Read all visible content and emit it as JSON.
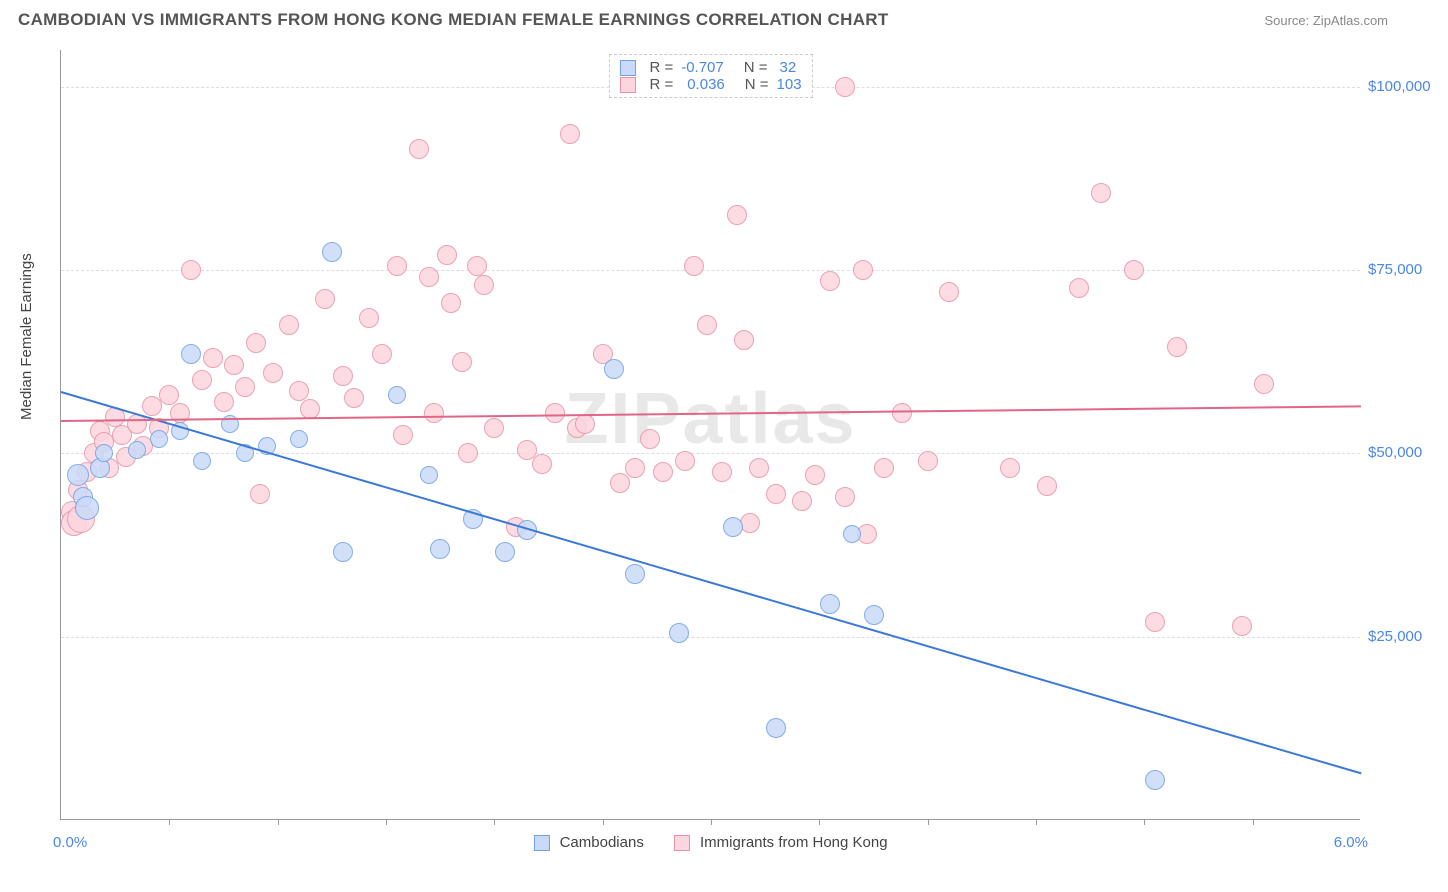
{
  "title": "CAMBODIAN VS IMMIGRANTS FROM HONG KONG MEDIAN FEMALE EARNINGS CORRELATION CHART",
  "source": "Source: ZipAtlas.com",
  "watermark": "ZIPatlas",
  "ylabel": "Median Female Earnings",
  "xaxis": {
    "min_label": "0.0%",
    "max_label": "6.0%",
    "min": 0.0,
    "max": 6.0,
    "tick_step": 0.5
  },
  "yaxis": {
    "min": 0,
    "max": 105000,
    "ticks": [
      25000,
      50000,
      75000,
      100000
    ],
    "tick_labels": [
      "$25,000",
      "$50,000",
      "$75,000",
      "$100,000"
    ]
  },
  "series": [
    {
      "name": "Cambodians",
      "color_fill": "#c9daf8",
      "color_stroke": "#6fa0e8",
      "r_value": "-0.707",
      "n_value": "32",
      "trend": {
        "x1": 0.0,
        "y1": 58500,
        "x2": 6.0,
        "y2": 6500,
        "color": "#3b78d8",
        "width": 2
      },
      "points": [
        {
          "x": 0.08,
          "y": 47000,
          "r": 11
        },
        {
          "x": 0.1,
          "y": 44000,
          "r": 10
        },
        {
          "x": 0.12,
          "y": 42500,
          "r": 12
        },
        {
          "x": 0.18,
          "y": 48000,
          "r": 10
        },
        {
          "x": 0.2,
          "y": 50000,
          "r": 9
        },
        {
          "x": 0.35,
          "y": 50500,
          "r": 9
        },
        {
          "x": 0.45,
          "y": 52000,
          "r": 9
        },
        {
          "x": 0.55,
          "y": 53000,
          "r": 9
        },
        {
          "x": 0.6,
          "y": 63500,
          "r": 10
        },
        {
          "x": 0.65,
          "y": 49000,
          "r": 9
        },
        {
          "x": 0.78,
          "y": 54000,
          "r": 9
        },
        {
          "x": 0.85,
          "y": 50000,
          "r": 9
        },
        {
          "x": 0.95,
          "y": 51000,
          "r": 9
        },
        {
          "x": 1.1,
          "y": 52000,
          "r": 9
        },
        {
          "x": 1.25,
          "y": 77500,
          "r": 10
        },
        {
          "x": 1.3,
          "y": 36500,
          "r": 10
        },
        {
          "x": 1.55,
          "y": 58000,
          "r": 9
        },
        {
          "x": 1.7,
          "y": 47000,
          "r": 9
        },
        {
          "x": 1.75,
          "y": 37000,
          "r": 10
        },
        {
          "x": 1.9,
          "y": 41000,
          "r": 10
        },
        {
          "x": 2.05,
          "y": 36500,
          "r": 10
        },
        {
          "x": 2.15,
          "y": 39500,
          "r": 10
        },
        {
          "x": 2.55,
          "y": 61500,
          "r": 10
        },
        {
          "x": 2.65,
          "y": 33500,
          "r": 10
        },
        {
          "x": 2.85,
          "y": 25500,
          "r": 10
        },
        {
          "x": 3.1,
          "y": 40000,
          "r": 10
        },
        {
          "x": 3.3,
          "y": 12500,
          "r": 10
        },
        {
          "x": 3.55,
          "y": 29500,
          "r": 10
        },
        {
          "x": 3.65,
          "y": 39000,
          "r": 9
        },
        {
          "x": 3.75,
          "y": 28000,
          "r": 10
        },
        {
          "x": 5.05,
          "y": 5500,
          "r": 10
        }
      ]
    },
    {
      "name": "Immigrants from Hong Kong",
      "color_fill": "#fcd6de",
      "color_stroke": "#e891a6",
      "r_value": "0.036",
      "n_value": "103",
      "trend": {
        "x1": 0.0,
        "y1": 54500,
        "x2": 6.0,
        "y2": 56500,
        "color": "#e06687",
        "width": 2
      },
      "points": [
        {
          "x": 0.05,
          "y": 42000,
          "r": 11
        },
        {
          "x": 0.06,
          "y": 40500,
          "r": 13
        },
        {
          "x": 0.08,
          "y": 45000,
          "r": 10
        },
        {
          "x": 0.09,
          "y": 41000,
          "r": 14
        },
        {
          "x": 0.12,
          "y": 47500,
          "r": 10
        },
        {
          "x": 0.15,
          "y": 50000,
          "r": 10
        },
        {
          "x": 0.18,
          "y": 53000,
          "r": 10
        },
        {
          "x": 0.2,
          "y": 51500,
          "r": 10
        },
        {
          "x": 0.22,
          "y": 48000,
          "r": 10
        },
        {
          "x": 0.25,
          "y": 55000,
          "r": 10
        },
        {
          "x": 0.28,
          "y": 52500,
          "r": 10
        },
        {
          "x": 0.3,
          "y": 49500,
          "r": 10
        },
        {
          "x": 0.35,
          "y": 54000,
          "r": 10
        },
        {
          "x": 0.38,
          "y": 51000,
          "r": 10
        },
        {
          "x": 0.42,
          "y": 56500,
          "r": 10
        },
        {
          "x": 0.45,
          "y": 53500,
          "r": 10
        },
        {
          "x": 0.5,
          "y": 58000,
          "r": 10
        },
        {
          "x": 0.55,
          "y": 55500,
          "r": 10
        },
        {
          "x": 0.6,
          "y": 75000,
          "r": 10
        },
        {
          "x": 0.65,
          "y": 60000,
          "r": 10
        },
        {
          "x": 0.7,
          "y": 63000,
          "r": 10
        },
        {
          "x": 0.75,
          "y": 57000,
          "r": 10
        },
        {
          "x": 0.8,
          "y": 62000,
          "r": 10
        },
        {
          "x": 0.85,
          "y": 59000,
          "r": 10
        },
        {
          "x": 0.9,
          "y": 65000,
          "r": 10
        },
        {
          "x": 0.92,
          "y": 44500,
          "r": 10
        },
        {
          "x": 0.98,
          "y": 61000,
          "r": 10
        },
        {
          "x": 1.05,
          "y": 67500,
          "r": 10
        },
        {
          "x": 1.1,
          "y": 58500,
          "r": 10
        },
        {
          "x": 1.15,
          "y": 56000,
          "r": 10
        },
        {
          "x": 1.22,
          "y": 71000,
          "r": 10
        },
        {
          "x": 1.3,
          "y": 60500,
          "r": 10
        },
        {
          "x": 1.35,
          "y": 57500,
          "r": 10
        },
        {
          "x": 1.42,
          "y": 68500,
          "r": 10
        },
        {
          "x": 1.48,
          "y": 63500,
          "r": 10
        },
        {
          "x": 1.55,
          "y": 75500,
          "r": 10
        },
        {
          "x": 1.58,
          "y": 52500,
          "r": 10
        },
        {
          "x": 1.65,
          "y": 91500,
          "r": 10
        },
        {
          "x": 1.7,
          "y": 74000,
          "r": 10
        },
        {
          "x": 1.72,
          "y": 55500,
          "r": 10
        },
        {
          "x": 1.78,
          "y": 77000,
          "r": 10
        },
        {
          "x": 1.8,
          "y": 70500,
          "r": 10
        },
        {
          "x": 1.85,
          "y": 62500,
          "r": 10
        },
        {
          "x": 1.88,
          "y": 50000,
          "r": 10
        },
        {
          "x": 1.92,
          "y": 75500,
          "r": 10
        },
        {
          "x": 1.95,
          "y": 73000,
          "r": 10
        },
        {
          "x": 2.0,
          "y": 53500,
          "r": 10
        },
        {
          "x": 2.1,
          "y": 40000,
          "r": 10
        },
        {
          "x": 2.15,
          "y": 50500,
          "r": 10
        },
        {
          "x": 2.22,
          "y": 48500,
          "r": 10
        },
        {
          "x": 2.28,
          "y": 55500,
          "r": 10
        },
        {
          "x": 2.35,
          "y": 93500,
          "r": 10
        },
        {
          "x": 2.38,
          "y": 53500,
          "r": 10
        },
        {
          "x": 2.42,
          "y": 54000,
          "r": 10
        },
        {
          "x": 2.5,
          "y": 63500,
          "r": 10
        },
        {
          "x": 2.58,
          "y": 46000,
          "r": 10
        },
        {
          "x": 2.65,
          "y": 48000,
          "r": 10
        },
        {
          "x": 2.72,
          "y": 52000,
          "r": 10
        },
        {
          "x": 2.78,
          "y": 47500,
          "r": 10
        },
        {
          "x": 2.88,
          "y": 49000,
          "r": 10
        },
        {
          "x": 2.92,
          "y": 75500,
          "r": 10
        },
        {
          "x": 2.98,
          "y": 67500,
          "r": 10
        },
        {
          "x": 3.05,
          "y": 47500,
          "r": 10
        },
        {
          "x": 3.12,
          "y": 82500,
          "r": 10
        },
        {
          "x": 3.15,
          "y": 65500,
          "r": 10
        },
        {
          "x": 3.18,
          "y": 40500,
          "r": 10
        },
        {
          "x": 3.22,
          "y": 48000,
          "r": 10
        },
        {
          "x": 3.3,
          "y": 44500,
          "r": 10
        },
        {
          "x": 3.62,
          "y": 100000,
          "r": 10
        },
        {
          "x": 3.42,
          "y": 43500,
          "r": 10
        },
        {
          "x": 3.48,
          "y": 47000,
          "r": 10
        },
        {
          "x": 3.55,
          "y": 73500,
          "r": 10
        },
        {
          "x": 3.62,
          "y": 44000,
          "r": 10
        },
        {
          "x": 3.7,
          "y": 75000,
          "r": 10
        },
        {
          "x": 3.72,
          "y": 39000,
          "r": 10
        },
        {
          "x": 3.8,
          "y": 48000,
          "r": 10
        },
        {
          "x": 3.88,
          "y": 55500,
          "r": 10
        },
        {
          "x": 4.0,
          "y": 49000,
          "r": 10
        },
        {
          "x": 4.1,
          "y": 72000,
          "r": 10
        },
        {
          "x": 4.38,
          "y": 48000,
          "r": 10
        },
        {
          "x": 4.55,
          "y": 45500,
          "r": 10
        },
        {
          "x": 4.7,
          "y": 72500,
          "r": 10
        },
        {
          "x": 4.8,
          "y": 85500,
          "r": 10
        },
        {
          "x": 4.95,
          "y": 75000,
          "r": 10
        },
        {
          "x": 5.05,
          "y": 27000,
          "r": 10
        },
        {
          "x": 5.15,
          "y": 64500,
          "r": 10
        },
        {
          "x": 5.45,
          "y": 26500,
          "r": 10
        },
        {
          "x": 5.55,
          "y": 59500,
          "r": 10
        }
      ]
    }
  ],
  "legend_bottom": {
    "items": [
      "Cambodians",
      "Immigrants from Hong Kong"
    ]
  },
  "chart_style": {
    "background_color": "#ffffff",
    "grid_color": "#dddddd",
    "axis_color": "#999999",
    "title_color": "#555555",
    "source_color": "#888888",
    "tick_label_color": "#4a86e8",
    "ylabel_color": "#444444",
    "title_fontsize": 17,
    "label_fontsize": 15
  }
}
